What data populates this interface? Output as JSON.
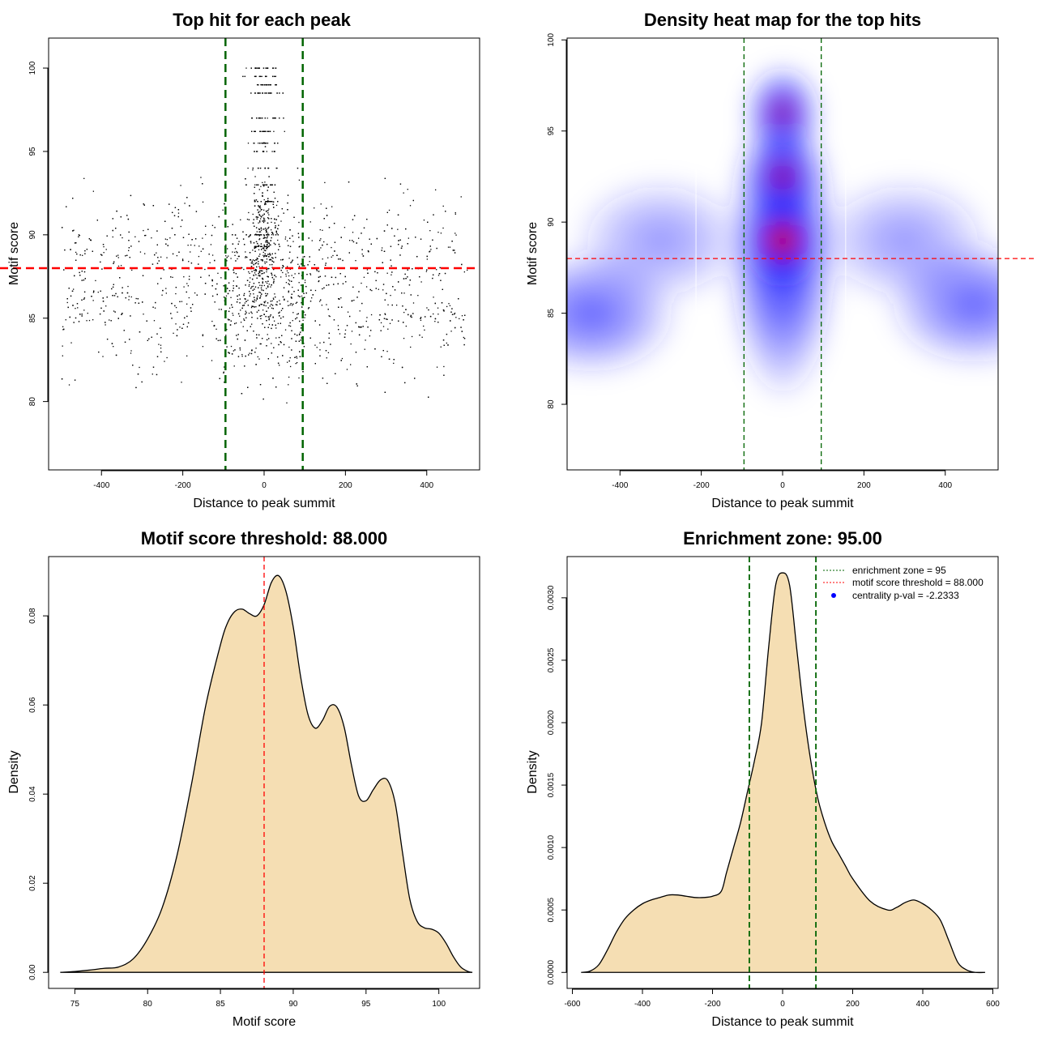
{
  "figure": {
    "panels": [
      "scatter",
      "heatmap",
      "score_density",
      "distance_density"
    ]
  },
  "chart_data": [
    {
      "id": "scatter",
      "type": "scatter",
      "title": "Top hit for each peak",
      "xlabel": "Distance to peak summit",
      "ylabel": "Motif score",
      "xlim": [
        -530,
        530
      ],
      "ylim": [
        75.9,
        101.8
      ],
      "xticks": [
        -400,
        -200,
        0,
        200,
        400
      ],
      "yticks": [
        80,
        85,
        90,
        95,
        100
      ],
      "point_color": "#000000",
      "approx_point_count": 3200,
      "distribution": {
        "x_range": [
          -500,
          500
        ],
        "y_range": [
          76.4,
          100
        ],
        "central_cluster": {
          "x_center": 0,
          "x_halfwidth": 95,
          "y_peak": 89,
          "discrete_score_rows": [
            100,
            99.5,
            99,
            98.5,
            97,
            96.2,
            95.5,
            95,
            94,
            93,
            92,
            90,
            89.3,
            88.5
          ]
        },
        "background": {
          "y_modes": [
            85,
            89
          ],
          "y_mode_weights": [
            0.5,
            0.5
          ]
        }
      },
      "vlines": {
        "x": [
          -95,
          95
        ],
        "color": "#006400",
        "style": "dashed"
      },
      "hline": {
        "y": 88,
        "color": "#ff0000",
        "style": "dashed"
      }
    },
    {
      "id": "heatmap",
      "type": "heatmap",
      "title": "Density heat map for the top hits",
      "xlabel": "Distance to peak summit",
      "ylabel": "Motif score",
      "xlim": [
        -530,
        530
      ],
      "ylim": [
        76.4,
        100.1
      ],
      "xticks": [
        -400,
        -200,
        0,
        200,
        400
      ],
      "yticks": [
        80,
        85,
        90,
        95,
        100
      ],
      "colors": [
        "#ffffff",
        "#0000ff",
        "#ff0000"
      ],
      "density_peaks": [
        {
          "x": 0,
          "y": 89,
          "intensity": 1.0
        },
        {
          "x": 0,
          "y": 92.5,
          "intensity": 0.72
        },
        {
          "x": 0,
          "y": 96,
          "intensity": 0.66
        },
        {
          "x": -470,
          "y": 85,
          "intensity": 0.22
        },
        {
          "x": 470,
          "y": 85.5,
          "intensity": 0.22
        },
        {
          "x": -300,
          "y": 89,
          "intensity": 0.15
        },
        {
          "x": 300,
          "y": 89,
          "intensity": 0.15
        }
      ],
      "white_lines_x": [
        -213,
        155
      ],
      "vlines": {
        "x": [
          -95,
          95
        ],
        "color": "#006400",
        "style": "dashed"
      },
      "hline": {
        "y": 88,
        "color": "#ff0000",
        "style": "dashed"
      }
    },
    {
      "id": "score_density",
      "type": "area",
      "title": "Motif score threshold: 88.000",
      "xlabel": "Motif score",
      "ylabel": "Density",
      "xlim": [
        73.2,
        102.8
      ],
      "ylim": [
        -0.0036,
        0.0933
      ],
      "xticks": [
        75,
        80,
        85,
        90,
        95,
        100
      ],
      "yticks": [
        0.0,
        0.02,
        0.04,
        0.06,
        0.08
      ],
      "ytick_labels": [
        "0.00",
        "0.02",
        "0.04",
        "0.06",
        "0.08"
      ],
      "fill": "#f5deb3",
      "x": [
        74,
        75,
        76,
        77,
        78,
        79,
        80,
        81,
        82,
        83,
        84,
        85,
        85.5,
        86,
        86.5,
        87,
        87.5,
        88,
        88.5,
        89,
        89.5,
        90,
        90.5,
        91,
        91.5,
        92,
        92.5,
        93,
        93.5,
        94,
        94.5,
        95,
        95.5,
        96,
        96.5,
        97,
        97.5,
        98,
        98.5,
        99,
        99.5,
        100,
        100.5,
        101,
        101.5,
        102,
        102.3
      ],
      "y": [
        0.0,
        0.0002,
        0.0005,
        0.0009,
        0.0012,
        0.003,
        0.0075,
        0.0145,
        0.026,
        0.042,
        0.06,
        0.0735,
        0.0785,
        0.081,
        0.0815,
        0.0805,
        0.08,
        0.0825,
        0.0875,
        0.089,
        0.0855,
        0.0775,
        0.0665,
        0.058,
        0.0548,
        0.0565,
        0.0597,
        0.0595,
        0.055,
        0.0465,
        0.0395,
        0.0385,
        0.041,
        0.0432,
        0.043,
        0.038,
        0.027,
        0.0165,
        0.0115,
        0.01,
        0.0097,
        0.0088,
        0.0065,
        0.0035,
        0.0012,
        0.0002,
        0.0
      ],
      "vline": {
        "x": 88,
        "color": "#ff0000",
        "style": "dashed"
      }
    },
    {
      "id": "distance_density",
      "type": "area",
      "title": "Enrichment zone: 95.00",
      "xlabel": "Distance to peak summit",
      "ylabel": "Density",
      "xlim": [
        -615,
        615
      ],
      "ylim": [
        -0.000128,
        0.00333
      ],
      "xticks": [
        -600,
        -400,
        -200,
        0,
        200,
        400,
        600
      ],
      "yticks": [
        0.0,
        0.0005,
        0.001,
        0.0015,
        0.002,
        0.0025,
        0.003
      ],
      "ytick_labels": [
        "0.0000",
        "0.0005",
        "0.0010",
        "0.0015",
        "0.0020",
        "0.0025",
        "0.0030"
      ],
      "fill": "#f5deb3",
      "x": [
        -575,
        -550,
        -525,
        -500,
        -475,
        -450,
        -425,
        -400,
        -375,
        -350,
        -325,
        -300,
        -275,
        -250,
        -225,
        -200,
        -175,
        -160,
        -140,
        -120,
        -100,
        -80,
        -60,
        -40,
        -20,
        0,
        20,
        40,
        60,
        80,
        100,
        120,
        140,
        160,
        180,
        200,
        250,
        300,
        325,
        350,
        375,
        400,
        425,
        450,
        475,
        500,
        525,
        550,
        578
      ],
      "y": [
        0.0,
        1e-05,
        6e-05,
        0.00018,
        0.00032,
        0.00043,
        0.0005,
        0.00055,
        0.00058,
        0.0006,
        0.00062,
        0.00062,
        0.00061,
        0.0006,
        0.0006,
        0.00061,
        0.00065,
        0.0008,
        0.001,
        0.0012,
        0.00145,
        0.0017,
        0.002,
        0.0026,
        0.0031,
        0.0032,
        0.0031,
        0.0026,
        0.0021,
        0.0017,
        0.0014,
        0.0012,
        0.00105,
        0.00095,
        0.00085,
        0.00075,
        0.00057,
        0.0005,
        0.00052,
        0.00056,
        0.00058,
        0.00055,
        0.0005,
        0.00042,
        0.00025,
        8e-05,
        2e-05,
        0.0,
        0.0
      ],
      "vlines": {
        "x": [
          -95,
          95
        ],
        "color": "#006400",
        "style": "dashed"
      },
      "legend": {
        "position": "top-right",
        "entries": [
          {
            "label": "enrichment zone = 95",
            "color": "#006400",
            "style": "dotted-line"
          },
          {
            "label": "motif score threshold = 88.000",
            "color": "#ff0000",
            "style": "dotted-line"
          },
          {
            "label": "centrality p-val = -2.2333",
            "color": "#0000ff",
            "style": "point"
          }
        ]
      }
    }
  ]
}
